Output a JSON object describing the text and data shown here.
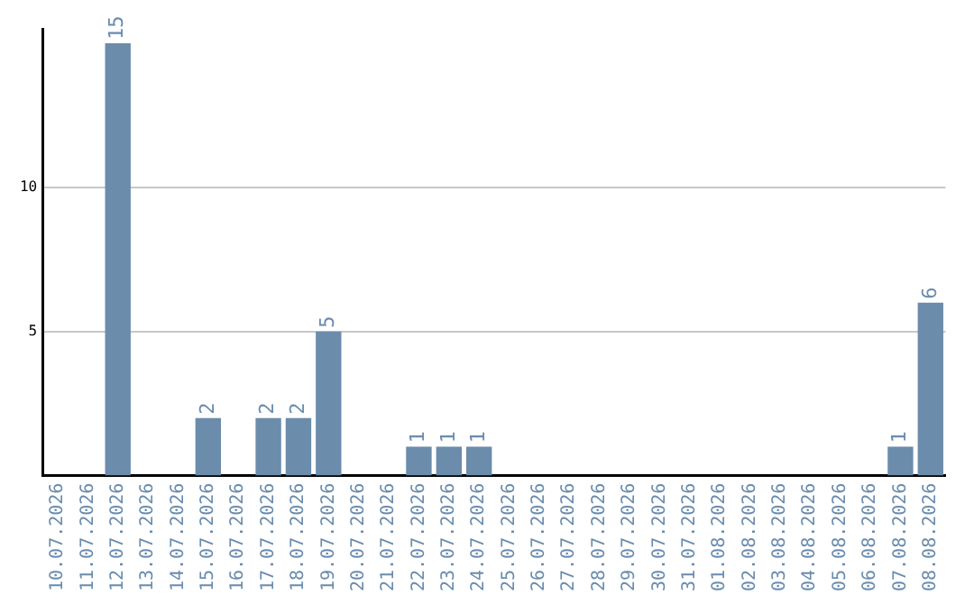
{
  "chart_data": {
    "type": "bar",
    "categories": [
      "10.07.2026",
      "11.07.2026",
      "12.07.2026",
      "13.07.2026",
      "14.07.2026",
      "15.07.2026",
      "16.07.2026",
      "17.07.2026",
      "18.07.2026",
      "19.07.2026",
      "20.07.2026",
      "21.07.2026",
      "22.07.2026",
      "23.07.2026",
      "24.07.2026",
      "25.07.2026",
      "26.07.2026",
      "27.07.2026",
      "28.07.2026",
      "29.07.2026",
      "30.07.2026",
      "31.07.2026",
      "01.08.2026",
      "02.08.2026",
      "03.08.2026",
      "04.08.2026",
      "05.08.2026",
      "06.08.2026",
      "07.08.2026",
      "08.08.2026"
    ],
    "values": [
      0,
      0,
      15,
      0,
      0,
      2,
      0,
      2,
      2,
      5,
      0,
      0,
      1,
      1,
      1,
      0,
      0,
      0,
      0,
      0,
      0,
      0,
      0,
      0,
      0,
      0,
      0,
      0,
      1,
      6
    ],
    "value_labels": [
      null,
      null,
      "15",
      null,
      null,
      "2",
      null,
      "2",
      "2",
      "5",
      null,
      null,
      "1",
      "1",
      "1",
      null,
      null,
      null,
      null,
      null,
      null,
      null,
      null,
      null,
      null,
      null,
      null,
      null,
      "1",
      "6"
    ],
    "color": "#6b8cab",
    "ylim": [
      0,
      15.5
    ],
    "yticks": [
      5,
      10
    ],
    "grid": "y",
    "legend": false
  }
}
